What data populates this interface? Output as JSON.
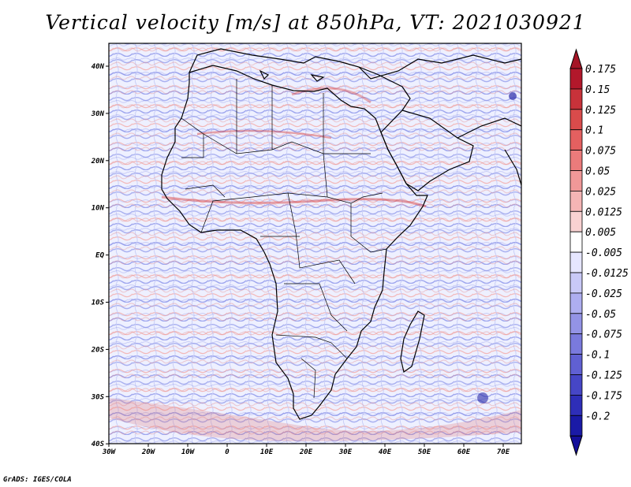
{
  "title": "Vertical velocity [m/s] at 850hPa, VT: 2021030921",
  "credit": "GrADS: IGES/COLA",
  "map": {
    "lon_labels": [
      "30W",
      "20W",
      "10W",
      "0",
      "10E",
      "20E",
      "30E",
      "40E",
      "50E",
      "60E",
      "70E"
    ],
    "lat_labels": [
      "40N",
      "30N",
      "20N",
      "10N",
      "EQ",
      "10S",
      "20S",
      "30S",
      "40S"
    ],
    "lon_range": [
      -30,
      75
    ],
    "lat_range": [
      -40,
      44
    ]
  },
  "colorbar": {
    "labels": [
      "0.175",
      "0.15",
      "0.125",
      "0.1",
      "0.075",
      "0.05",
      "0.025",
      "0.0125",
      "0.005",
      "-0.005",
      "-0.0125",
      "-0.025",
      "-0.05",
      "-0.075",
      "-0.1",
      "-0.125",
      "-0.175",
      "-0.2"
    ],
    "colors": [
      "#b2182b",
      "#c8323a",
      "#d94b4b",
      "#e46060",
      "#eb7b7b",
      "#f09898",
      "#f5b5b5",
      "#f9d2d2",
      "#ffffff",
      "#e6e6ff",
      "#c9c9f7",
      "#aeaef0",
      "#9393e6",
      "#7a7add",
      "#6060d2",
      "#4646c6",
      "#2e2eb8",
      "#1a1aa6"
    ],
    "top_arrow_color": "#a51526",
    "bottom_arrow_color": "#140f9a"
  }
}
